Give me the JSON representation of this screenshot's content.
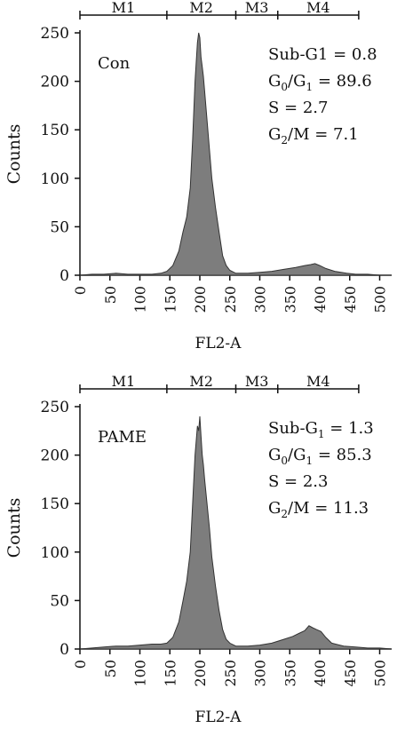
{
  "chart_data": [
    {
      "type": "area",
      "sample_label": "Con",
      "xlabel": "FL2-A",
      "ylabel": "Counts",
      "xlim": [
        0,
        520
      ],
      "ylim": [
        0,
        250
      ],
      "xticks": [
        0,
        50,
        100,
        150,
        200,
        250,
        300,
        350,
        400,
        450,
        500
      ],
      "yticks": [
        0,
        50,
        100,
        150,
        200,
        250
      ],
      "colors": {
        "fill": "#7d7d7d",
        "stroke": "#333333"
      },
      "markers": [
        {
          "label": "M1",
          "start": 0,
          "end": 145
        },
        {
          "label": "M2",
          "start": 145,
          "end": 260
        },
        {
          "label": "M3",
          "start": 260,
          "end": 330
        },
        {
          "label": "M4",
          "start": 330,
          "end": 465
        }
      ],
      "stats": [
        {
          "name": "Sub-G",
          "sub": "",
          "rest": "1 = 0.8"
        },
        {
          "name": "G",
          "sub": "0",
          "rest": "/G",
          "sub2": "1",
          "rest2": " = 89.6"
        },
        {
          "name": "S = 2.7",
          "sub": "",
          "rest": ""
        },
        {
          "name": "G",
          "sub": "2",
          "rest": "/M = 7.1"
        }
      ],
      "series": [
        {
          "x": [
            0,
            20,
            40,
            60,
            80,
            100,
            120,
            135,
            145,
            155,
            165,
            172,
            178,
            184,
            188,
            192,
            196,
            198,
            200,
            202,
            204,
            206,
            208,
            212,
            216,
            220,
            226,
            232,
            238,
            244,
            250,
            260,
            280,
            300,
            320,
            340,
            360,
            375,
            385,
            392,
            400,
            410,
            425,
            445,
            460,
            480,
            500,
            520
          ],
          "y": [
            0,
            1,
            1,
            2,
            1,
            1,
            1,
            2,
            4,
            10,
            25,
            45,
            60,
            90,
            140,
            200,
            240,
            250,
            245,
            225,
            215,
            205,
            190,
            160,
            130,
            100,
            70,
            45,
            20,
            10,
            5,
            2,
            2,
            3,
            4,
            6,
            8,
            10,
            11,
            12,
            10,
            7,
            4,
            2,
            1,
            1,
            0,
            0
          ]
        }
      ]
    },
    {
      "type": "area",
      "sample_label": "PAME",
      "xlabel": "FL2-A",
      "ylabel": "Counts",
      "xlim": [
        0,
        520
      ],
      "ylim": [
        0,
        250
      ],
      "xticks": [
        0,
        50,
        100,
        150,
        200,
        250,
        300,
        350,
        400,
        450,
        500
      ],
      "yticks": [
        0,
        50,
        100,
        150,
        200,
        250
      ],
      "colors": {
        "fill": "#7d7d7d",
        "stroke": "#333333"
      },
      "markers": [
        {
          "label": "M1",
          "start": 0,
          "end": 145
        },
        {
          "label": "M2",
          "start": 145,
          "end": 260
        },
        {
          "label": "M3",
          "start": 260,
          "end": 330
        },
        {
          "label": "M4",
          "start": 330,
          "end": 465
        }
      ],
      "stats": [
        {
          "name": "Sub-G",
          "sub": "1",
          "rest": " = 1.3"
        },
        {
          "name": "G",
          "sub": "0",
          "rest": "/G",
          "sub2": "1",
          "rest2": " = 85.3"
        },
        {
          "name": "S = 2.3",
          "sub": "",
          "rest": ""
        },
        {
          "name": "G",
          "sub": "2",
          "rest": "/M = 11.3"
        }
      ],
      "series": [
        {
          "x": [
            0,
            20,
            40,
            60,
            80,
            100,
            120,
            135,
            145,
            155,
            165,
            172,
            178,
            184,
            188,
            192,
            196,
            198,
            200,
            202,
            204,
            206,
            208,
            212,
            216,
            220,
            226,
            232,
            238,
            244,
            250,
            260,
            280,
            300,
            320,
            340,
            355,
            365,
            375,
            382,
            388,
            395,
            402,
            410,
            420,
            440,
            460,
            480,
            500,
            520
          ],
          "y": [
            0,
            1,
            2,
            3,
            3,
            4,
            5,
            5,
            6,
            12,
            28,
            50,
            70,
            100,
            150,
            200,
            230,
            225,
            240,
            220,
            200,
            190,
            175,
            150,
            125,
            95,
            65,
            40,
            20,
            10,
            6,
            3,
            3,
            4,
            6,
            10,
            13,
            16,
            19,
            24,
            22,
            20,
            18,
            12,
            6,
            3,
            2,
            1,
            1,
            0
          ]
        }
      ]
    }
  ]
}
